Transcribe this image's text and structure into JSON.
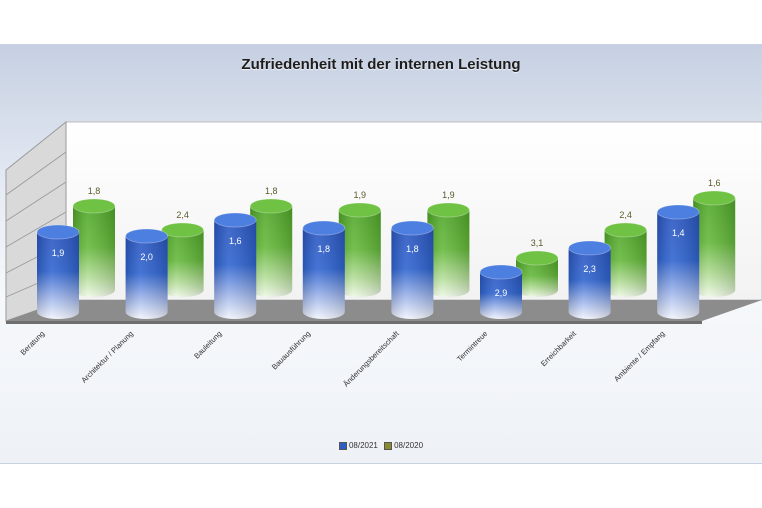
{
  "chart_data": {
    "type": "bar",
    "title": "Zufriedenheit mit der internen Leistung",
    "categories": [
      "Beratung",
      "Architektur / Planung",
      "Bauleitung",
      "Bauausführung",
      "Änderungsbereitschaft",
      "Termintreue",
      "Erreichbarkeit",
      "Ambiente / Empfang"
    ],
    "series": [
      {
        "name": "08/2021",
        "values": [
          1.9,
          2.0,
          1.6,
          1.8,
          1.8,
          2.9,
          2.3,
          1.4
        ],
        "labels": [
          "1,9",
          "2,0",
          "1,6",
          "1,8",
          "1,8",
          "2,9",
          "2,3",
          "1,4"
        ]
      },
      {
        "name": "08/2020",
        "values": [
          1.8,
          2.4,
          1.8,
          1.9,
          1.9,
          3.1,
          2.4,
          1.6
        ],
        "labels": [
          "1,8",
          "2,4",
          "1,8",
          "1,9",
          "1,9",
          "3,1",
          "2,4",
          "1,6"
        ]
      }
    ],
    "legend_position": "bottom",
    "colors": {
      "series1": "#2f5fc4",
      "series2": "#5fb233"
    }
  }
}
